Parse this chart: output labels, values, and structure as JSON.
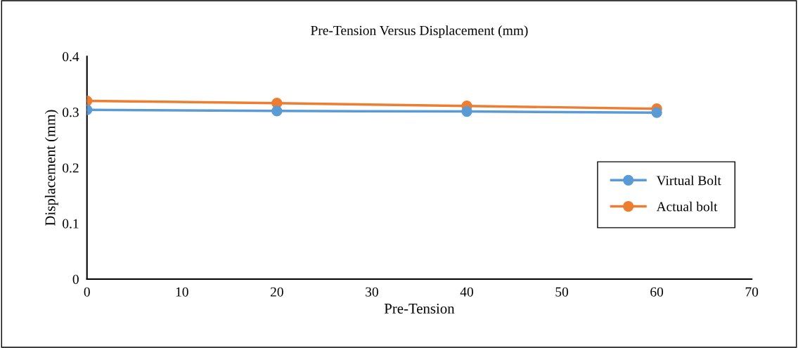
{
  "chart_data": {
    "type": "line",
    "title": "Pre-Tension Versus Displacement (mm)",
    "xlabel": "Pre-Tension",
    "ylabel": "Displacement (mm)",
    "x": [
      0,
      20,
      40,
      60
    ],
    "series": [
      {
        "name": "Virtual Bolt",
        "color": "#5b9bd5",
        "values": [
          0.304,
          0.302,
          0.301,
          0.299
        ]
      },
      {
        "name": "Actual bolt",
        "color": "#ed7d31",
        "values": [
          0.32,
          0.316,
          0.311,
          0.306
        ]
      }
    ],
    "xlim": [
      0,
      70
    ],
    "xticks": [
      0,
      10,
      20,
      30,
      40,
      50,
      60,
      70
    ],
    "ylim": [
      0,
      0.4
    ],
    "yticks": [
      0,
      0.1,
      0.2,
      0.3,
      0.4
    ],
    "grid": false,
    "legend": "bottom right",
    "marker": "circle",
    "line_style": "solid"
  }
}
